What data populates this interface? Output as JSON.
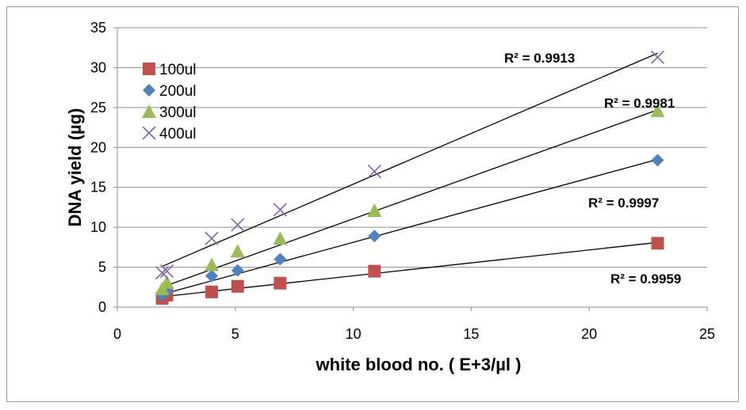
{
  "chart_data": {
    "type": "scatter",
    "xlabel": "white blood no. ( E+3/µl )",
    "ylabel": "DNA yield (µg)",
    "xlim": [
      0,
      25
    ],
    "ylim": [
      0,
      35
    ],
    "xticks": [
      0,
      5,
      10,
      15,
      20,
      25
    ],
    "yticks": [
      0,
      5,
      10,
      15,
      20,
      25,
      30,
      35
    ],
    "grid": "horizontal",
    "legend_position": "top-left",
    "series": [
      {
        "name": "100ul",
        "marker": "square",
        "color": "#c0504d",
        "x": [
          1.9,
          2.1,
          4.0,
          5.1,
          6.9,
          10.9,
          22.9
        ],
        "y": [
          1.1,
          1.5,
          1.9,
          2.6,
          3.0,
          4.5,
          8.0
        ],
        "trendline": {
          "x": [
            1.9,
            22.9
          ],
          "y": [
            1.3,
            8.1
          ]
        },
        "r2_label": "R² = 0.9959"
      },
      {
        "name": "200ul",
        "marker": "diamond",
        "color": "#4f81bd",
        "x": [
          1.9,
          2.1,
          4.0,
          5.1,
          6.9,
          10.9,
          22.9
        ],
        "y": [
          1.5,
          2.0,
          3.9,
          4.6,
          6.0,
          8.9,
          18.4
        ],
        "trendline": {
          "x": [
            1.9,
            22.9
          ],
          "y": [
            1.6,
            18.5
          ]
        },
        "r2_label": "R² = 0.9997"
      },
      {
        "name": "300ul",
        "marker": "triangle",
        "color": "#9bbb59",
        "x": [
          1.9,
          2.1,
          4.0,
          5.1,
          6.9,
          10.9,
          22.9
        ],
        "y": [
          2.3,
          3.1,
          5.3,
          7.0,
          8.6,
          12.1,
          24.6
        ],
        "trendline": {
          "x": [
            1.9,
            22.9
          ],
          "y": [
            2.5,
            24.7
          ]
        },
        "r2_label": "R² = 0.9981"
      },
      {
        "name": "400ul",
        "marker": "x",
        "color": "#8064a2",
        "x": [
          1.9,
          2.1,
          4.0,
          5.1,
          6.9,
          10.9,
          22.9
        ],
        "y": [
          4.3,
          4.5,
          8.6,
          10.3,
          12.2,
          17.0,
          31.3
        ],
        "trendline": {
          "x": [
            1.9,
            22.9
          ],
          "y": [
            5.1,
            31.8
          ]
        },
        "r2_label": "R² = 0.9913"
      }
    ]
  }
}
